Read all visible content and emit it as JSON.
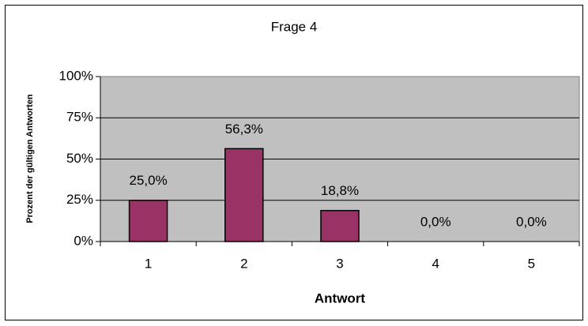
{
  "chart_data": {
    "type": "bar",
    "title": "Frage 4",
    "x_label": "Antwort",
    "y_label": "Prozent der gültigen Antworten",
    "categories": [
      "1",
      "2",
      "3",
      "4",
      "5"
    ],
    "values": [
      25.0,
      56.3,
      18.8,
      0,
      0
    ],
    "value_labels": [
      "25,0%",
      "56,3%",
      "18,8%",
      "0,0%",
      "0,0%"
    ],
    "color": "#993366",
    "ylim": [
      0,
      100
    ],
    "yticks": [
      {
        "value": 0,
        "label": "0%"
      },
      {
        "value": 25,
        "label": "25%"
      },
      {
        "value": 50,
        "label": "50%"
      },
      {
        "value": 75,
        "label": "75%"
      },
      {
        "value": 100,
        "label": "100%"
      }
    ],
    "grid": true
  }
}
